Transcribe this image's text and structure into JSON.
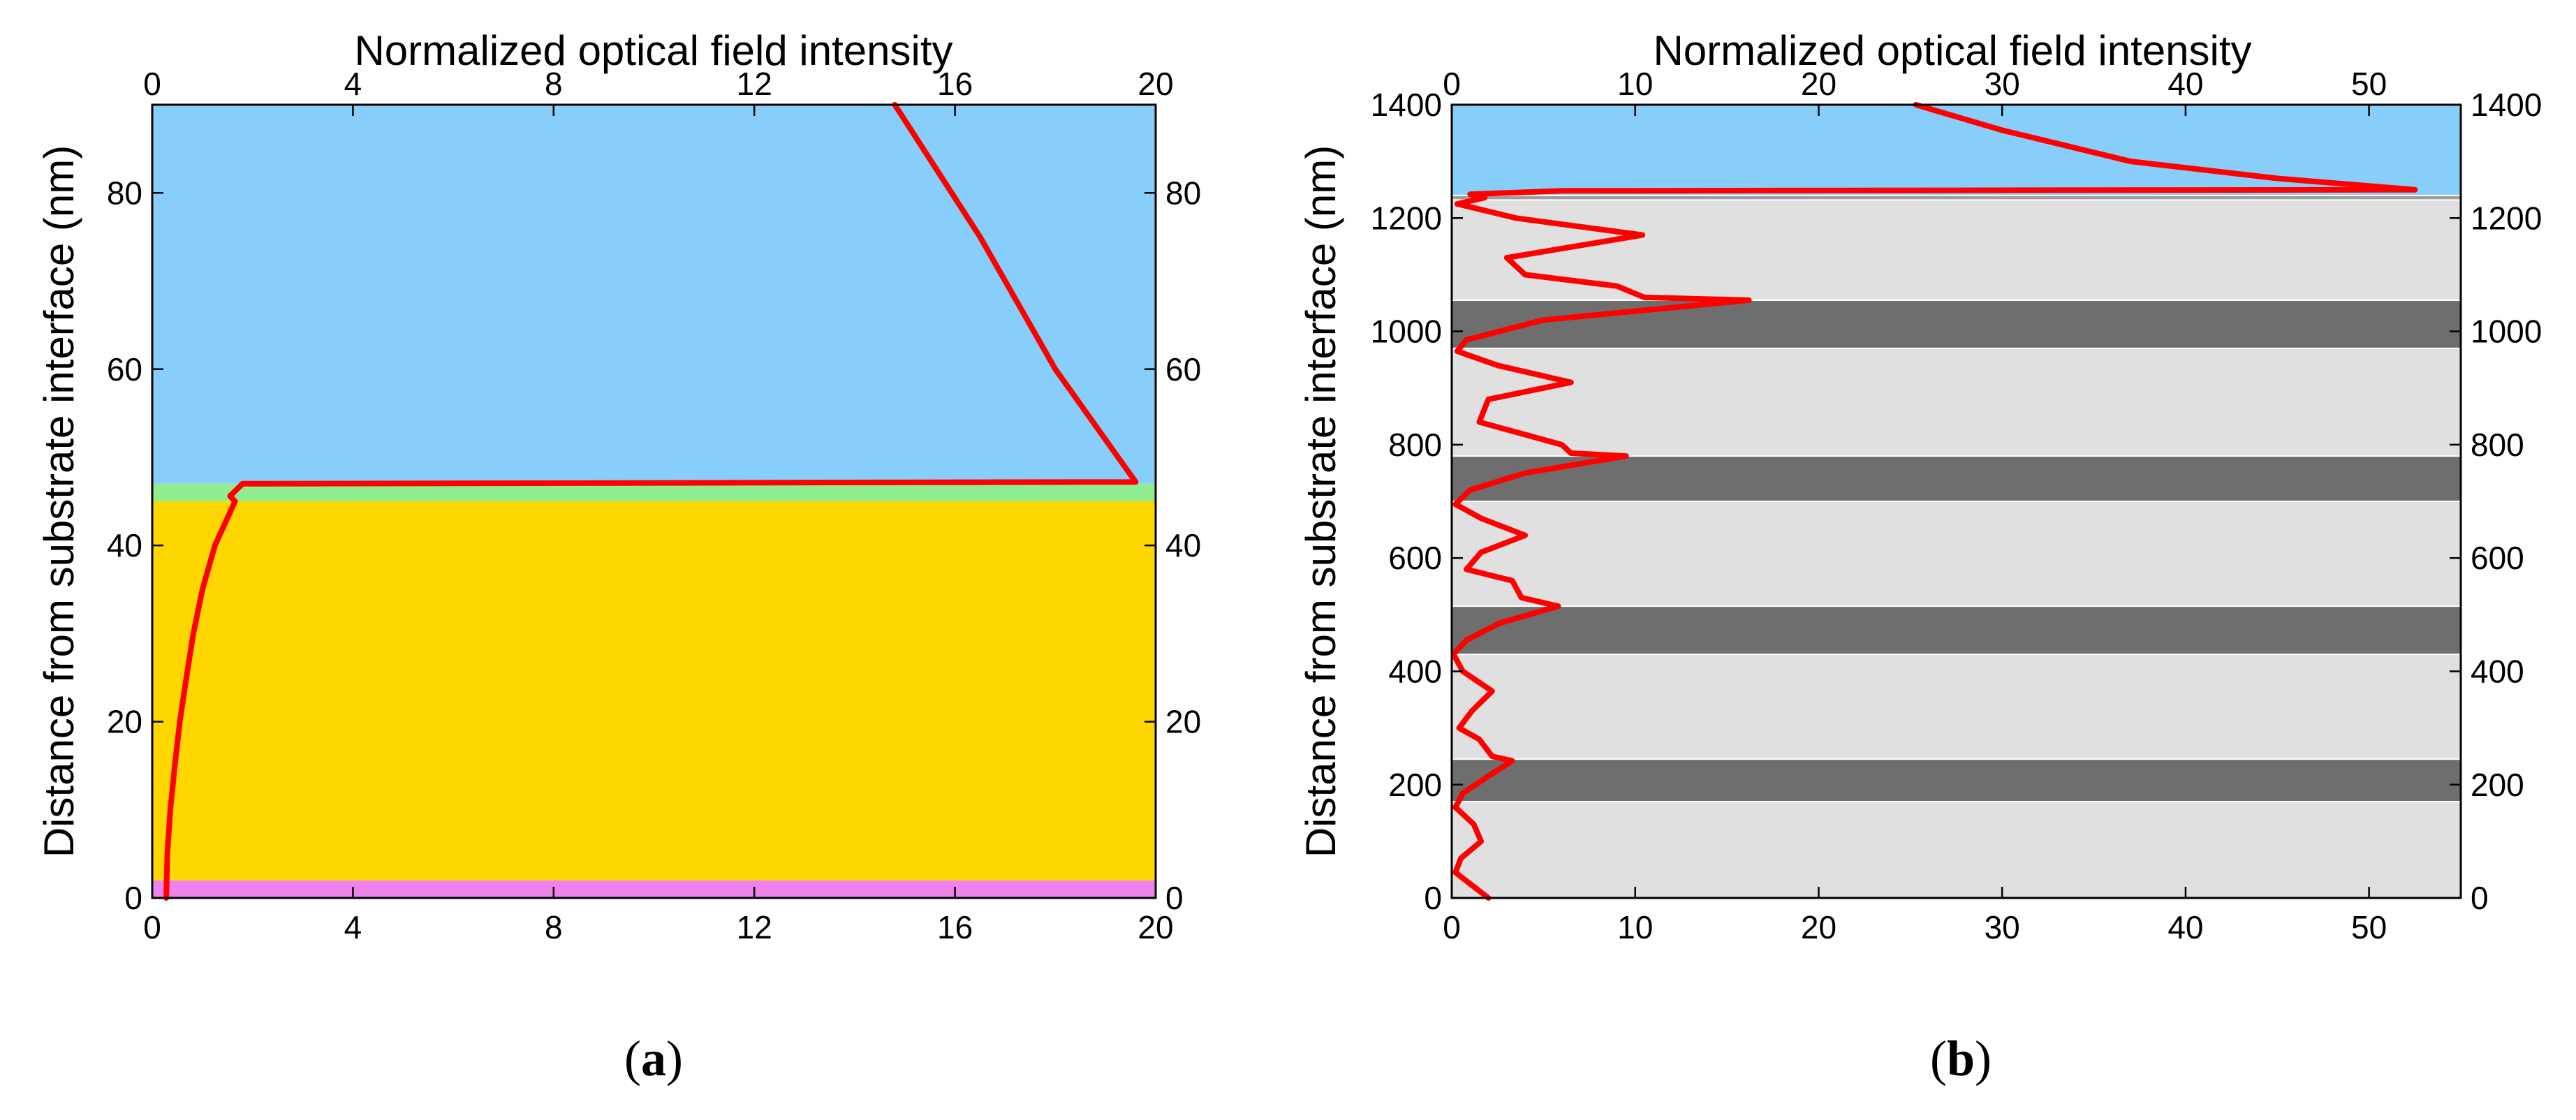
{
  "chart_data": [
    {
      "type": "line",
      "panel_label_open": "(",
      "panel_label_letter": "a",
      "panel_label_close": ")",
      "title": "Normalized optical field intensity",
      "xlabel": "",
      "ylabel": "Distance from substrate interface (nm)",
      "xlim": [
        0,
        20
      ],
      "ylim": [
        0,
        90
      ],
      "xticks": [
        0,
        4,
        8,
        12,
        16,
        20
      ],
      "yticks": [
        0,
        20,
        40,
        60,
        80
      ],
      "xtick_labels": [
        "0",
        "4",
        "8",
        "12",
        "16",
        "20"
      ],
      "ytick_labels": [
        "0",
        "20",
        "40",
        "60",
        "80"
      ],
      "grid": false,
      "layers": [
        {
          "from": 0,
          "to": 2,
          "color": "#EE82EE"
        },
        {
          "from": 2,
          "to": 45,
          "color": "#FFD700"
        },
        {
          "from": 45,
          "to": 47,
          "color": "#90EE90"
        },
        {
          "from": 47,
          "to": 90,
          "color": "#87CEFA"
        }
      ],
      "series": [
        {
          "name": "intensity",
          "color": "#FF0000",
          "points": [
            [
              0.28,
              0
            ],
            [
              0.3,
              5
            ],
            [
              0.36,
              10
            ],
            [
              0.45,
              15
            ],
            [
              0.55,
              20
            ],
            [
              0.68,
              25
            ],
            [
              0.82,
              30
            ],
            [
              1.0,
              35
            ],
            [
              1.25,
              40
            ],
            [
              1.65,
              45
            ],
            [
              1.55,
              45.6
            ],
            [
              1.8,
              47
            ],
            [
              19.6,
              47.2
            ],
            [
              18.0,
              60
            ],
            [
              16.5,
              75
            ],
            [
              14.8,
              90
            ]
          ]
        }
      ]
    },
    {
      "type": "line",
      "panel_label_open": "(",
      "panel_label_letter": "b",
      "panel_label_close": ")",
      "title": "Normalized optical field intensity",
      "xlabel": "",
      "ylabel": "Distance from substrate interface (nm)",
      "xlim": [
        0,
        55
      ],
      "ylim": [
        0,
        1400
      ],
      "xticks": [
        0,
        10,
        20,
        30,
        40,
        50
      ],
      "yticks": [
        0,
        200,
        400,
        600,
        800,
        1000,
        1200,
        1400
      ],
      "xtick_labels": [
        "0",
        "10",
        "20",
        "30",
        "40",
        "50"
      ],
      "ytick_labels": [
        "0",
        "200",
        "400",
        "600",
        "800",
        "1000",
        "1200",
        "1400"
      ],
      "grid": false,
      "layers": [
        {
          "from": 0,
          "to": 170,
          "color": "#E0E0E0"
        },
        {
          "from": 170,
          "to": 245,
          "color": "#6E6E6E"
        },
        {
          "from": 245,
          "to": 430,
          "color": "#E0E0E0"
        },
        {
          "from": 430,
          "to": 515,
          "color": "#6E6E6E"
        },
        {
          "from": 515,
          "to": 700,
          "color": "#E0E0E0"
        },
        {
          "from": 700,
          "to": 780,
          "color": "#6E6E6E"
        },
        {
          "from": 780,
          "to": 970,
          "color": "#E0E0E0"
        },
        {
          "from": 970,
          "to": 1055,
          "color": "#6E6E6E"
        },
        {
          "from": 1055,
          "to": 1232,
          "color": "#E0E0E0"
        },
        {
          "from": 1232,
          "to": 1240,
          "color": "#9E9E9E"
        },
        {
          "from": 1240,
          "to": 1400,
          "color": "#87CEFA"
        }
      ],
      "series": [
        {
          "name": "intensity",
          "color": "#FF0000",
          "points": [
            [
              2,
              0
            ],
            [
              1.2,
              20
            ],
            [
              0.2,
              45
            ],
            [
              0.5,
              70
            ],
            [
              1.6,
              100
            ],
            [
              1.2,
              130
            ],
            [
              0.2,
              160
            ],
            [
              0.6,
              185
            ],
            [
              2.0,
              215
            ],
            [
              3.3,
              242
            ],
            [
              2.2,
              250
            ],
            [
              1.5,
              280
            ],
            [
              0.4,
              300
            ],
            [
              1.1,
              330
            ],
            [
              2.2,
              365
            ],
            [
              0.6,
              400
            ],
            [
              0.1,
              430
            ],
            [
              0.8,
              455
            ],
            [
              2.6,
              485
            ],
            [
              5.8,
              515
            ],
            [
              3.8,
              530
            ],
            [
              3.3,
              560
            ],
            [
              0.8,
              580
            ],
            [
              1.6,
              610
            ],
            [
              4.0,
              640
            ],
            [
              1.6,
              670
            ],
            [
              0.2,
              695
            ],
            [
              1.0,
              720
            ],
            [
              4.0,
              750
            ],
            [
              9.5,
              780
            ],
            [
              6.5,
              785
            ],
            [
              6.0,
              800
            ],
            [
              1.5,
              840
            ],
            [
              2.0,
              880
            ],
            [
              6.5,
              910
            ],
            [
              2.5,
              940
            ],
            [
              0.3,
              965
            ],
            [
              0.8,
              985
            ],
            [
              5.0,
              1020
            ],
            [
              16.2,
              1055
            ],
            [
              10.5,
              1060
            ],
            [
              9.0,
              1080
            ],
            [
              4.0,
              1100
            ],
            [
              3.0,
              1130
            ],
            [
              10.4,
              1170
            ],
            [
              3.5,
              1200
            ],
            [
              0.3,
              1225
            ],
            [
              1.8,
              1236
            ],
            [
              1.0,
              1242
            ],
            [
              6,
              1248
            ],
            [
              52.5,
              1250
            ],
            [
              45,
              1270
            ],
            [
              37,
              1300
            ],
            [
              30,
              1355
            ],
            [
              25.3,
              1400
            ]
          ]
        }
      ]
    }
  ]
}
